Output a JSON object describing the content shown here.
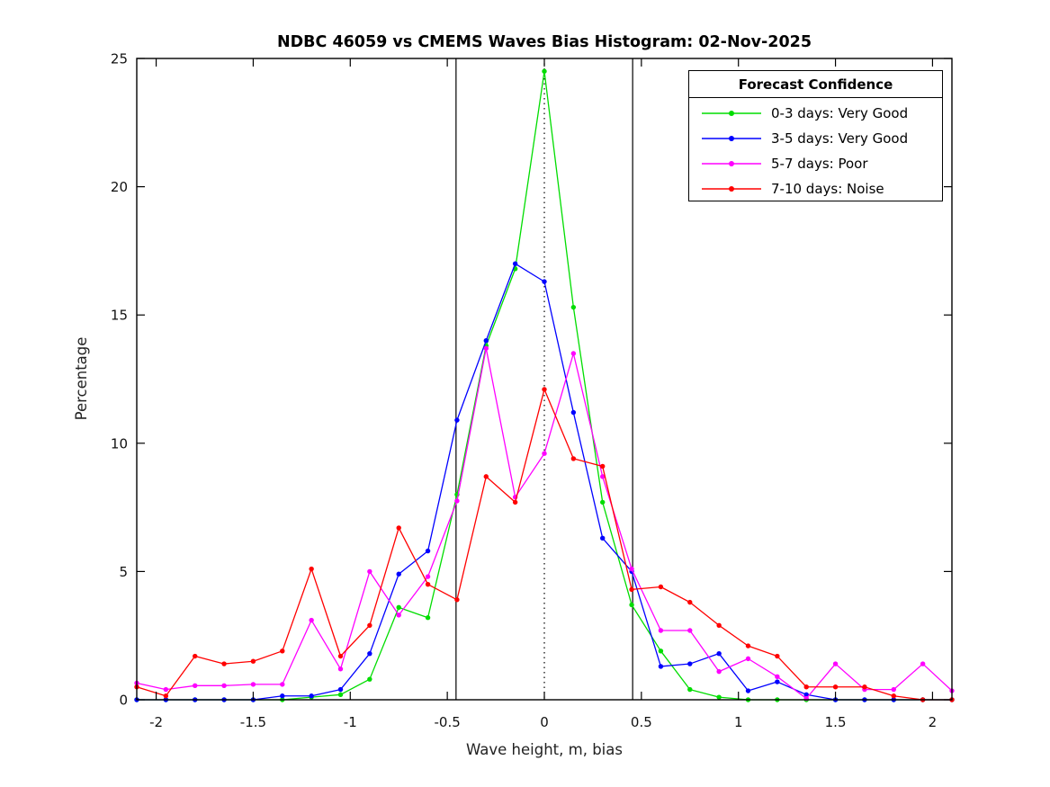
{
  "figure": {
    "title": "NDBC 46059 vs CMEMS Waves Bias Histogram: 02-Nov-2025",
    "xlabel": "Wave height, m, bias",
    "ylabel": "Percentage"
  },
  "legend": {
    "title": "Forecast Confidence",
    "entries": [
      {
        "label": "0-3 days: Very Good",
        "color": "#00dd00"
      },
      {
        "label": "3-5 days: Very Good",
        "color": "#0000ff"
      },
      {
        "label": "5-7 days: Poor",
        "color": "#ff00ff"
      },
      {
        "label": "7-10 days: Noise",
        "color": "#ff0000"
      }
    ]
  },
  "chart_data": {
    "type": "line",
    "title": "NDBC 46059 vs CMEMS Waves Bias Histogram: 02-Nov-2025",
    "xlabel": "Wave height, m, bias",
    "ylabel": "Percentage",
    "xlim": [
      -2.1,
      2.1
    ],
    "ylim": [
      0,
      25
    ],
    "xticks": [
      -2,
      -1.5,
      -1,
      -0.5,
      0,
      0.5,
      1,
      1.5,
      2
    ],
    "xtick_labels": [
      "-2",
      "-1.5",
      "-1",
      "-0.5",
      "0",
      "0.5",
      "1",
      "1.5",
      "2"
    ],
    "yticks": [
      0,
      5,
      10,
      15,
      20,
      25
    ],
    "ytick_labels": [
      "0",
      "5",
      "10",
      "15",
      "20",
      "25"
    ],
    "grid": false,
    "legend_title": "Forecast Confidence",
    "legend_position": "top-right",
    "x": [
      -2.1,
      -1.95,
      -1.8,
      -1.65,
      -1.5,
      -1.35,
      -1.2,
      -1.05,
      -0.9,
      -0.75,
      -0.6,
      -0.45,
      -0.3,
      -0.15,
      0,
      0.15,
      0.3,
      0.45,
      0.6,
      0.75,
      0.9,
      1.05,
      1.2,
      1.35,
      1.5,
      1.65,
      1.8,
      1.95,
      2.1
    ],
    "series": [
      {
        "name": "0-3 days: Very Good",
        "color": "#00dd00",
        "values": [
          0,
          0,
          0,
          0,
          0,
          0,
          0.1,
          0.2,
          0.8,
          3.6,
          3.2,
          8.0,
          13.8,
          16.8,
          24.5,
          15.3,
          7.7,
          3.7,
          1.9,
          0.4,
          0.1,
          0,
          0,
          0,
          0,
          0,
          0,
          0,
          0
        ]
      },
      {
        "name": "3-5 days: Very Good",
        "color": "#0000ff",
        "values": [
          0,
          0,
          0,
          0,
          0,
          0.15,
          0.15,
          0.4,
          1.8,
          4.9,
          5.8,
          10.9,
          14.0,
          17.0,
          16.3,
          11.2,
          6.3,
          5.0,
          1.3,
          1.4,
          1.8,
          0.35,
          0.7,
          0.2,
          0,
          0,
          0,
          0,
          0
        ]
      },
      {
        "name": "5-7 days: Poor",
        "color": "#ff00ff",
        "values": [
          0.65,
          0.4,
          0.55,
          0.55,
          0.6,
          0.6,
          3.1,
          1.2,
          5.0,
          3.3,
          4.8,
          7.75,
          13.7,
          7.9,
          9.6,
          13.5,
          8.7,
          5.1,
          2.7,
          2.7,
          1.1,
          1.6,
          0.9,
          0.05,
          1.4,
          0.4,
          0.4,
          1.4,
          0.35
        ]
      },
      {
        "name": "7-10 days: Noise",
        "color": "#ff0000",
        "values": [
          0.5,
          0.15,
          1.7,
          1.4,
          1.5,
          1.9,
          5.1,
          1.7,
          2.9,
          6.7,
          4.5,
          3.9,
          8.7,
          7.7,
          12.1,
          9.4,
          9.1,
          4.3,
          4.4,
          3.8,
          2.9,
          2.1,
          1.7,
          0.5,
          0.5,
          0.5,
          0.15,
          0,
          0
        ]
      }
    ],
    "reference_lines": [
      {
        "x": -0.455,
        "style": "solid",
        "color": "#000000",
        "name": "lower-bound-line"
      },
      {
        "x": 0,
        "style": "dotted",
        "color": "#000000",
        "name": "zero-bias-dotted-line"
      },
      {
        "x": 0.455,
        "style": "solid",
        "color": "#000000",
        "name": "upper-bound-line"
      }
    ]
  }
}
